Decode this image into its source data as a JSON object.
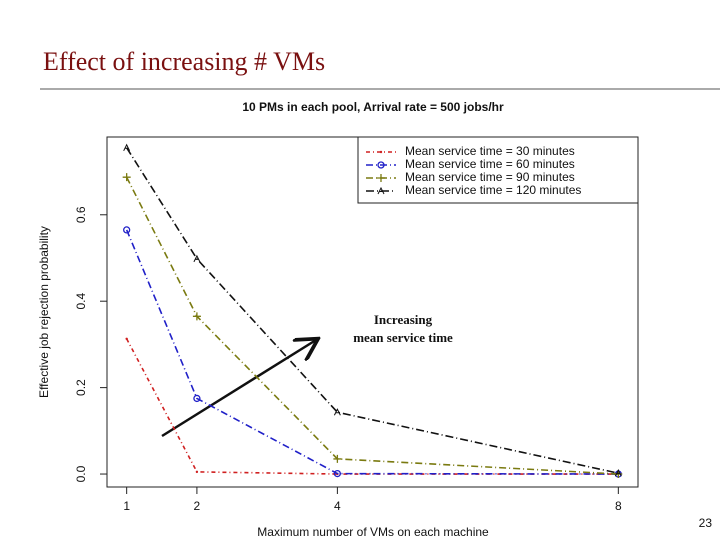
{
  "slide": {
    "title": "Effect of increasing # VMs",
    "page_number": 23
  },
  "chart_data": {
    "type": "line",
    "title": "10 PMs in each pool, Arrival rate = 500 jobs/hr",
    "x_label": "Maximum number of VMs on each machine",
    "y_label": "Effective job rejection probability",
    "x": [
      1,
      2,
      4,
      8
    ],
    "xlim": [
      0.72,
      8.28
    ],
    "xticks": [
      1,
      2,
      4,
      8
    ],
    "ylim": [
      -0.03,
      0.78
    ],
    "yticks": [
      {
        "value": 0,
        "label": "0.0"
      },
      0.2,
      0.4,
      0.6
    ],
    "legend": "top-right",
    "annotation": [
      "Increasing",
      "mean service time"
    ],
    "series": [
      {
        "name": "Mean service time = 30 minutes",
        "color": "#d02020",
        "marker": "dot",
        "dash": "4 3 1 3",
        "values": [
          0.313,
          0.005,
          0,
          0
        ]
      },
      {
        "name": "Mean service time = 60 minutes",
        "color": "#2020c8",
        "marker": "circle",
        "dash": "7 3 1 3",
        "values": [
          0.565,
          0.175,
          0.001,
          0
        ]
      },
      {
        "name": "Mean service time = 90 minutes",
        "color": "#7a7a10",
        "marker": "plus",
        "dash": "7 3 1 3",
        "values": [
          0.687,
          0.365,
          0.035,
          0
        ]
      },
      {
        "name": "Mean service time = 120 minutes",
        "color": "#111111",
        "marker": "triangle",
        "dash": "8 3 1 3",
        "values": [
          0.755,
          0.498,
          0.143,
          0.002
        ]
      }
    ]
  }
}
